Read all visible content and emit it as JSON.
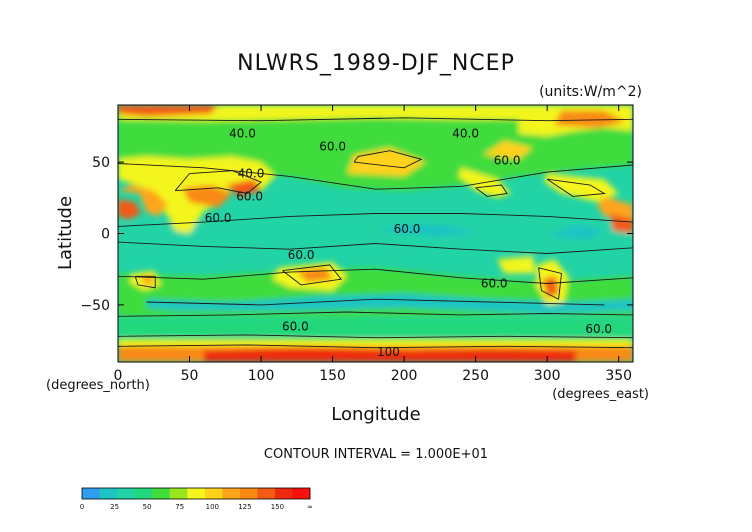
{
  "chart_data": {
    "type": "heatmap",
    "title": "NLWRS_1989-DJF_NCEP",
    "units_label": "(units:W/m^2)",
    "xlabel": "Longitude",
    "ylabel": "Latitude",
    "x_unit_label": "(degrees_east)",
    "y_unit_label": "(degrees_north)",
    "xlim": [
      0,
      360
    ],
    "ylim": [
      -90,
      90
    ],
    "x_ticks": [
      0,
      50,
      100,
      150,
      200,
      250,
      300,
      350
    ],
    "y_ticks": [
      -50,
      0,
      50
    ],
    "contour_interval_text": "CONTOUR INTERVAL = 1.000E+01",
    "colorbar": {
      "tick_labels": [
        "0",
        "25",
        "50",
        "75",
        "100",
        "125",
        "150",
        "∞"
      ],
      "boundaries": [
        0,
        12.5,
        25,
        37.5,
        50,
        62.5,
        75,
        87.5,
        100,
        112.5,
        125,
        137.5,
        150
      ],
      "colors": [
        "#2e9ef0",
        "#1fc4c4",
        "#22d3a6",
        "#21d87a",
        "#3fdc3c",
        "#9be51f",
        "#f3f51c",
        "#ffd21a",
        "#ffa51a",
        "#f88a13",
        "#f35a12",
        "#ee2a0e",
        "#ff0e0e"
      ]
    },
    "contour_labels": [
      {
        "text": "40.0",
        "lon": 87,
        "lat": 70
      },
      {
        "text": "60.0",
        "lon": 150,
        "lat": 61
      },
      {
        "text": "40.0",
        "lon": 243,
        "lat": 70
      },
      {
        "text": "60.0",
        "lon": 272,
        "lat": 51
      },
      {
        "text": "40.0",
        "lon": 93,
        "lat": 42
      },
      {
        "text": "60.0",
        "lon": 92,
        "lat": 26
      },
      {
        "text": "60.0",
        "lon": 70,
        "lat": 11
      },
      {
        "text": "60.0",
        "lon": 202,
        "lat": 3
      },
      {
        "text": "60.0",
        "lon": 128,
        "lat": -15
      },
      {
        "text": "60.0",
        "lon": 263,
        "lat": -35
      },
      {
        "text": "60.0",
        "lon": 124,
        "lat": -65
      },
      {
        "text": "60.0",
        "lon": 336,
        "lat": -67
      },
      {
        "text": "100",
        "lon": 189,
        "lat": -83
      }
    ],
    "grid": false
  }
}
